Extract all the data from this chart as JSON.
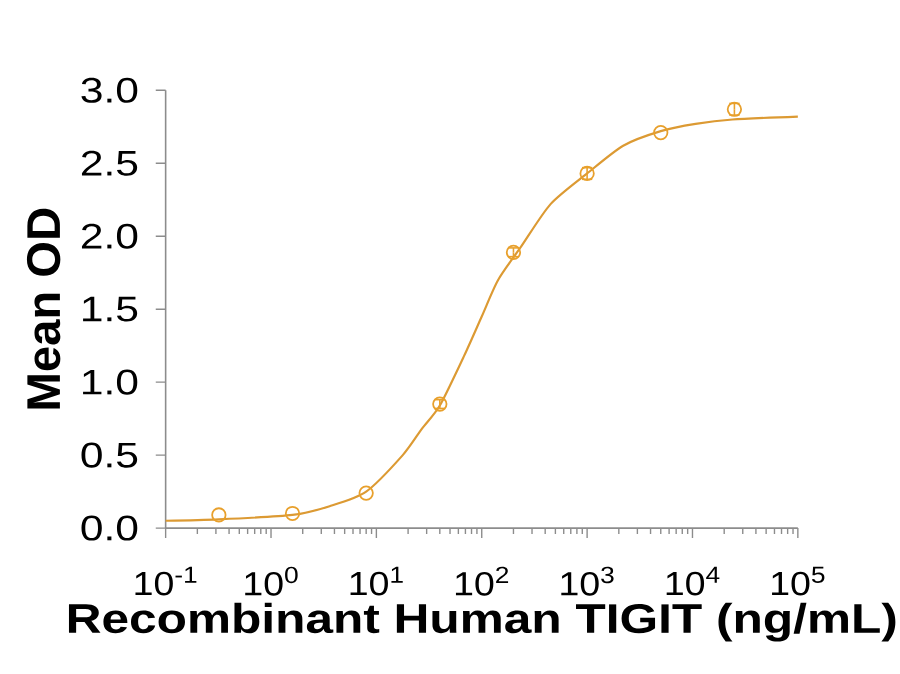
{
  "chart_data": {
    "type": "scatter",
    "xlabel": "Recombinant Human TIGIT (ng/mL)",
    "ylabel": "Mean OD",
    "log": "x",
    "xlim": [
      0.1,
      100000
    ],
    "xticks": [
      {
        "value": 0.1,
        "label": "10$^{-1}$"
      },
      {
        "value": 1,
        "label": "10$^{0}$"
      },
      {
        "value": 10,
        "label": "10$^{1}$"
      },
      {
        "value": 100,
        "label": "10$^{2}$"
      },
      {
        "value": 1000,
        "label": "10$^{3}$"
      },
      {
        "value": 10000,
        "label": "10$^{4}$"
      },
      {
        "value": 100000,
        "label": "10$^{5}$"
      }
    ],
    "ylim": [
      0,
      3
    ],
    "yticks": [
      {
        "value": 0,
        "label": "0.0"
      },
      0.5,
      {
        "value": 1,
        "label": "1.0"
      },
      1.5,
      {
        "value": 2,
        "label": "2.0"
      },
      2.5,
      {
        "value": 3,
        "label": "3.0"
      }
    ],
    "marker": "circle",
    "series": [
      {
        "color": "#e8a02c",
        "x": [
          0.32,
          1.6,
          8,
          40,
          200,
          1000,
          5000,
          25000
        ],
        "values": [
          0.09,
          0.1,
          0.24,
          0.85,
          1.89,
          2.43,
          2.71,
          2.87
        ],
        "errors": [
          null,
          null,
          null,
          0.03,
          0.03,
          0.04,
          null,
          0.04
        ]
      },
      {
        "type": "line",
        "color": "#dc9a33",
        "marker": "none",
        "x": [
          0.1,
          0.32,
          1.6,
          3.6,
          8,
          17.8,
          27,
          40,
          68,
          100,
          143,
          237,
          450,
          1000,
          2200,
          5000,
          10700,
          24000,
          100000
        ],
        "values": [
          0.05,
          0.06,
          0.09,
          0.15,
          0.25,
          0.5,
          0.68,
          0.84,
          1.18,
          1.45,
          1.7,
          1.93,
          2.22,
          2.43,
          2.62,
          2.72,
          2.77,
          2.8,
          2.82
        ]
      }
    ]
  }
}
